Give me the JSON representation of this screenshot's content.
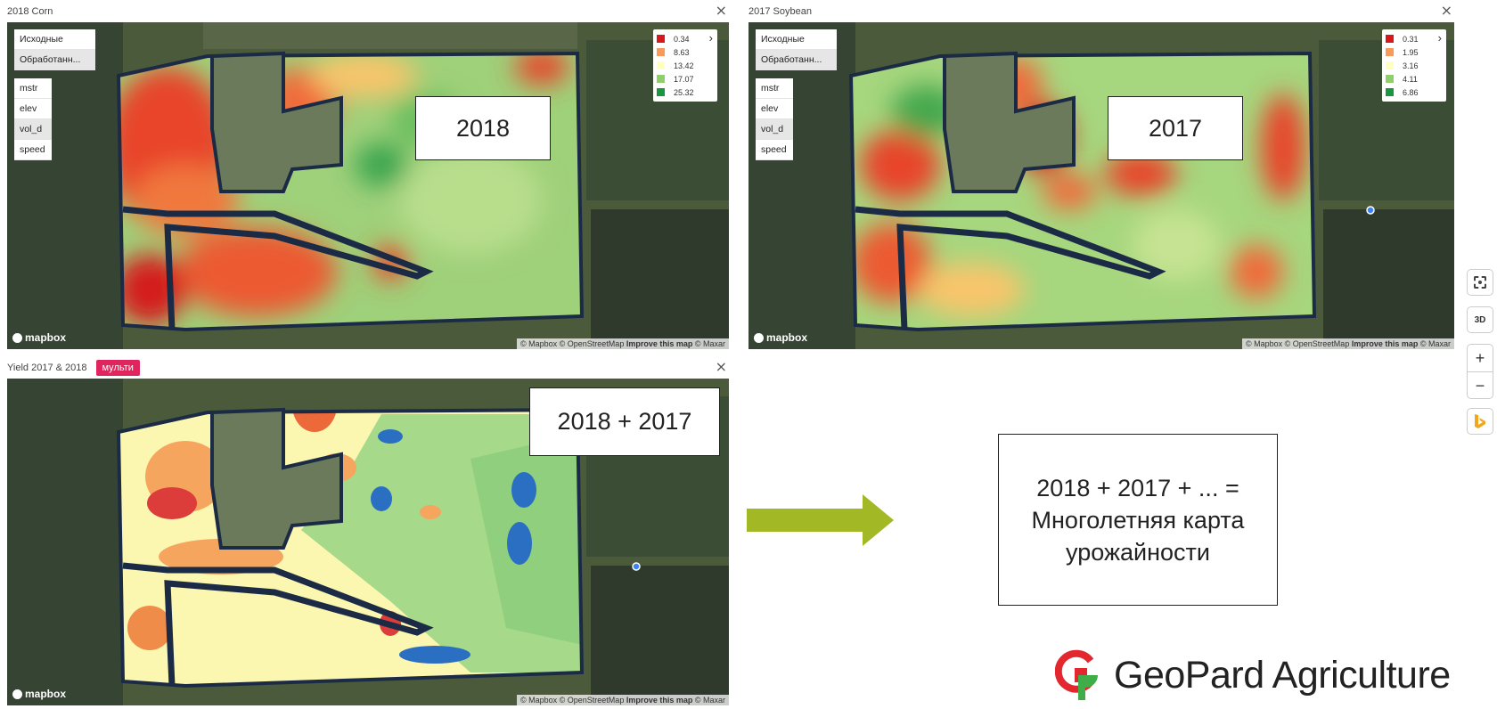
{
  "panels": {
    "corn": {
      "title": "2018 Corn",
      "close": "×",
      "year_label": "2018",
      "layers": [
        "Исходные",
        "Обработанн...",
        "mstr",
        "elev",
        "vol_d",
        "speed"
      ],
      "legend": {
        "values": [
          "0.34",
          "8.63",
          "13.42",
          "17.07",
          "25.32"
        ],
        "colors": [
          "#d7191c",
          "#f79a5c",
          "#ffffbf",
          "#8fce6a",
          "#1a9641"
        ],
        "arrow": "›"
      }
    },
    "soy": {
      "title": "2017 Soybean",
      "close": "×",
      "year_label": "2017",
      "layers": [
        "Исходные",
        "Обработанн...",
        "mstr",
        "elev",
        "vol_d",
        "speed"
      ],
      "legend": {
        "values": [
          "0.31",
          "1.95",
          "3.16",
          "4.11",
          "6.86"
        ],
        "colors": [
          "#d7191c",
          "#f79a5c",
          "#ffffbf",
          "#8fce6a",
          "#1a9641"
        ],
        "arrow": "›"
      }
    },
    "multi": {
      "title": "Yield 2017 & 2018",
      "badge": "мульти",
      "close": "×",
      "year_label": "2018 + 2017"
    }
  },
  "map": {
    "logo": "mapbox",
    "attribution_prefix": "© Mapbox © OpenStreetMap ",
    "attribution_link": "Improve this map",
    "attribution_suffix": " © Maxar"
  },
  "map_controls": {
    "focus": "focus-icon",
    "three_d": "3D",
    "zoom_in": "+",
    "zoom_out": "−",
    "bing": "bing-icon"
  },
  "result": {
    "line1": "2018 + 2017 + ... =",
    "line2": "Многолетняя карта",
    "line3": "урожайности"
  },
  "brand": {
    "name": "GeoPard Agriculture"
  },
  "colors": {
    "arrow": "#a3b825",
    "badge": "#e0245e",
    "logo_red": "#e3272f",
    "logo_green": "#3fae49"
  }
}
